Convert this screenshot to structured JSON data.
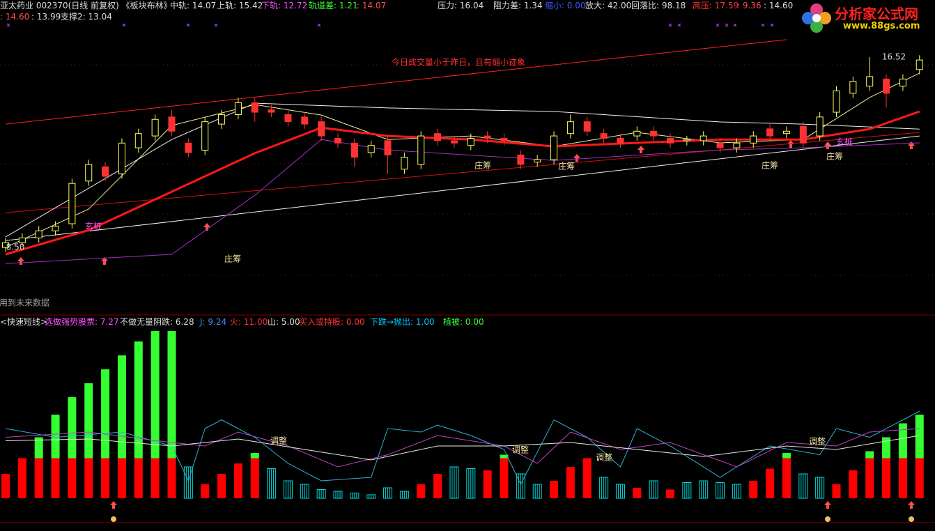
{
  "header": {
    "rows": [
      [
        {
          "text": "亚太药业 002370(日线 前复权) 《板块布林》",
          "color": "#dcdcdc"
        },
        {
          "text": "中轨: 14.07",
          "color": "#dcdcdc"
        },
        {
          "text": "上轨: 15.42",
          "color": "#dcdcdc"
        },
        {
          "text": "下轨: 12.72",
          "color": "#ff55ff"
        },
        {
          "text": "轨道差: 1.21",
          "color": "#33ff33"
        },
        {
          "text": ": 14.07",
          "color": "#ff5050"
        },
        {
          "text": "压力: 16.04",
          "color": "#dcdcdc"
        },
        {
          "text": "阻力差: 1.34",
          "color": "#dcdcdc"
        },
        {
          "text": "缩小: 0.00",
          "color": "#3c5aff"
        },
        {
          "text": "放大: 42.00",
          "color": "#dcdcdc"
        },
        {
          "text": "回落比: 98.18",
          "color": "#dcdcdc"
        },
        {
          "text": "高压: 17.59",
          "color": "#ff3232"
        },
        {
          "text": ": 9.36",
          "color": "#ff5050"
        },
        {
          "text": ": 14.60",
          "color": "#dcdcdc"
        }
      ],
      [
        {
          "text": ": 14.60",
          "color": "#ff5050"
        },
        {
          "text": ": 13.99",
          "color": "#dcdcdc"
        },
        {
          "text": "支撑2: 13.04",
          "color": "#dcdcdc"
        }
      ]
    ]
  },
  "indicator_header": [
    {
      "text": "<快速短线>",
      "color": "#dcdcdc"
    },
    {
      "text": "选做强势股票: 7.27",
      "color": "#ff55ff"
    },
    {
      "text": "不做无量阴跌: 6.28",
      "color": "#dcdcdc"
    },
    {
      "text": "J: 9.24",
      "color": "#3c8cff"
    },
    {
      "text": "火: 11.00",
      "color": "#ff3232"
    },
    {
      "text": "山: 5.00",
      "color": "#dcdcdc"
    },
    {
      "text": "买入或持股: 0.00",
      "color": "#ff3232"
    },
    {
      "text": "下跌→抛出: 1.00",
      "color": "#00c8ff"
    },
    {
      "text": "植被: 0.00",
      "color": "#33ff33"
    }
  ],
  "logo": {
    "title": "分析家公式网",
    "url": "www.88gs.com"
  },
  "chart_data": [
    {
      "type": "candlestick",
      "ylim": [
        5.86,
        18.93
      ],
      "up_color": "#ffff54",
      "down_color": "#ff3232",
      "open": [
        8.5,
        8.7,
        8.9,
        9.2,
        9.5,
        11.3,
        11.9,
        11.6,
        12.7,
        13.2,
        14.0,
        12.9,
        12.6,
        13.7,
        14.1,
        14.6,
        14.3,
        14.1,
        14.0,
        13.8,
        13.1,
        12.9,
        12.5,
        13.0,
        11.8,
        12.0,
        13.3,
        13.0,
        12.8,
        13.2,
        13.1,
        12.4,
        12.1,
        12.2,
        13.3,
        13.8,
        13.3,
        13.1,
        13.2,
        13.4,
        13.1,
        13.0,
        13.0,
        12.9,
        12.7,
        12.9,
        13.5,
        13.3,
        13.6,
        13.2,
        14.2,
        15.0,
        15.3,
        15.6,
        15.3,
        16.0
      ],
      "close": [
        8.7,
        8.9,
        9.2,
        9.4,
        11.2,
        12.0,
        11.5,
        12.9,
        13.3,
        13.9,
        13.4,
        12.5,
        13.8,
        14.1,
        14.6,
        14.2,
        14.2,
        13.8,
        13.7,
        13.2,
        12.9,
        12.3,
        12.8,
        12.4,
        12.3,
        13.2,
        13.0,
        12.9,
        13.1,
        13.1,
        13.0,
        12.0,
        12.2,
        13.2,
        13.8,
        13.4,
        13.1,
        12.9,
        13.4,
        13.2,
        12.9,
        13.05,
        13.2,
        12.7,
        12.9,
        13.2,
        13.2,
        13.4,
        12.9,
        14.0,
        15.1,
        15.5,
        15.7,
        15.0,
        15.6,
        16.4
      ],
      "high": [
        8.9,
        9.1,
        9.4,
        9.6,
        11.4,
        12.2,
        12.1,
        13.1,
        13.5,
        14.1,
        14.3,
        13.1,
        14.0,
        14.3,
        14.8,
        14.8,
        14.5,
        14.3,
        14.2,
        14.0,
        13.3,
        13.1,
        13.0,
        13.2,
        12.5,
        13.4,
        13.5,
        13.2,
        13.3,
        13.4,
        13.3,
        12.6,
        12.4,
        13.4,
        14.1,
        14.0,
        13.5,
        13.3,
        13.6,
        13.6,
        13.3,
        13.2,
        13.4,
        13.1,
        13.1,
        13.4,
        13.7,
        13.6,
        13.8,
        14.2,
        15.3,
        15.7,
        16.52,
        15.8,
        15.8,
        16.6
      ],
      "low": [
        8.3,
        8.5,
        8.7,
        9.0,
        9.3,
        11.1,
        11.3,
        11.4,
        12.5,
        13.0,
        13.2,
        12.3,
        12.4,
        13.5,
        13.9,
        13.8,
        14.0,
        13.6,
        13.5,
        13.0,
        12.7,
        11.9,
        12.3,
        11.6,
        11.6,
        11.8,
        12.8,
        12.7,
        12.6,
        12.9,
        12.8,
        11.8,
        11.9,
        12.0,
        13.1,
        13.2,
        12.9,
        12.7,
        13.0,
        13.0,
        12.7,
        12.8,
        12.8,
        12.5,
        12.5,
        12.7,
        13.0,
        13.1,
        12.7,
        13.0,
        14.0,
        14.8,
        15.1,
        14.4,
        15.1,
        15.8
      ],
      "lines": [
        {
          "color": "#ff2020",
          "width": 1,
          "x": [
            0,
            47
          ],
          "values": [
            13.7,
            17.26
          ]
        },
        {
          "color": "#d01010",
          "width": 1,
          "x": [
            0,
            55
          ],
          "values": [
            9.97,
            13.35
          ]
        },
        {
          "color": "#f0f0f0",
          "width": 1,
          "x": [
            0,
            55
          ],
          "values": [
            8.79,
            13.2
          ]
        },
        {
          "color": "#a030c0",
          "width": 1,
          "x": [
            0,
            10,
            15,
            19,
            23,
            33,
            43,
            48,
            55
          ],
          "values": [
            7.82,
            8.21,
            10.7,
            13.05,
            12.61,
            12.17,
            12.61,
            12.7,
            12.91
          ]
        },
        {
          "color": "#f0f0f0",
          "width": 1,
          "x": [
            0,
            10,
            15,
            23,
            33,
            43,
            48,
            55
          ],
          "values": [
            8.94,
            13.05,
            14.58,
            14.38,
            14.23,
            13.79,
            13.7,
            13.49
          ]
        },
        {
          "color": "#f0f0a0",
          "width": 1,
          "x": [
            0,
            5,
            10,
            15,
            19,
            23,
            28,
            33,
            38,
            43,
            48,
            52,
            55
          ],
          "values": [
            8.5,
            10.12,
            13.64,
            14.52,
            14.08,
            13.05,
            13.2,
            12.76,
            13.35,
            12.91,
            13.05,
            14.82,
            15.85
          ]
        },
        {
          "color": "#ff1818",
          "width": 3,
          "x": [
            0,
            5,
            10,
            15,
            19,
            23,
            28,
            33,
            38,
            43,
            48,
            52,
            55
          ],
          "values": [
            8.21,
            9.23,
            10.85,
            12.47,
            13.55,
            13.2,
            13.05,
            12.76,
            12.91,
            13.05,
            13.05,
            13.49,
            14.23
          ]
        }
      ],
      "annotations": [
        "今日成交量小于昨日，且有缩小迹象",
        "庄筹",
        "庄筹",
        "庄筹",
        "庄筹",
        "庄筹",
        "玄桩",
        "玄桩",
        "16.52",
        "8.50",
        "用到未来数据"
      ]
    },
    {
      "type": "bar",
      "ylim": [
        0,
        100
      ],
      "series": [
        {
          "color": "#ff0000",
          "values": [
            14,
            23,
            23,
            23,
            23,
            23,
            23,
            23,
            23,
            23,
            23,
            null,
            8,
            14,
            20,
            23,
            null,
            null,
            null,
            null,
            null,
            null,
            null,
            null,
            null,
            8,
            14,
            null,
            null,
            16,
            23,
            null,
            null,
            10,
            18,
            23,
            null,
            null,
            6,
            null,
            5,
            null,
            null,
            null,
            null,
            10,
            17,
            23,
            null,
            null,
            8,
            16,
            23,
            23,
            23,
            23
          ]
        },
        {
          "color": "#33ff33",
          "values": [
            null,
            null,
            12,
            25,
            35,
            43,
            51,
            59,
            67,
            73,
            73,
            null,
            null,
            null,
            null,
            3,
            null,
            null,
            null,
            null,
            null,
            null,
            null,
            null,
            null,
            null,
            null,
            null,
            null,
            null,
            2,
            null,
            null,
            null,
            null,
            null,
            null,
            null,
            null,
            null,
            null,
            null,
            null,
            null,
            null,
            null,
            null,
            3,
            null,
            null,
            null,
            null,
            4,
            12,
            20,
            25
          ]
        },
        {
          "color": "#00d8d8",
          "values": [
            null,
            null,
            null,
            null,
            null,
            null,
            null,
            null,
            null,
            null,
            null,
            18,
            null,
            null,
            null,
            null,
            17,
            10,
            8,
            5,
            4,
            3,
            2,
            6,
            4,
            null,
            null,
            18,
            17,
            null,
            null,
            14,
            8,
            null,
            null,
            null,
            12,
            8,
            null,
            10,
            null,
            9,
            10,
            9,
            8,
            null,
            null,
            null,
            14,
            12,
            null,
            null,
            null,
            null,
            null,
            null
          ]
        }
      ],
      "lines": [
        {
          "color": "#30b0d0",
          "width": 1,
          "x": [
            0,
            3,
            7,
            10,
            11,
            12,
            13,
            15,
            17,
            19,
            22,
            23,
            25,
            26,
            28,
            30,
            31,
            33,
            35,
            37,
            38,
            40,
            43,
            46,
            49,
            50,
            52,
            55
          ],
          "values": [
            40,
            35,
            38,
            30,
            10,
            40,
            45,
            35,
            20,
            10,
            12,
            40,
            38,
            42,
            36,
            28,
            8,
            45,
            35,
            18,
            40,
            30,
            12,
            30,
            25,
            40,
            35,
            50
          ]
        },
        {
          "color": "#c040c0",
          "width": 1,
          "x": [
            0,
            5,
            10,
            12,
            14,
            17,
            20,
            23,
            26,
            30,
            32,
            34,
            37,
            40,
            44,
            47,
            50,
            52,
            55
          ],
          "values": [
            35,
            38,
            32,
            30,
            38,
            30,
            18,
            25,
            36,
            30,
            20,
            38,
            28,
            32,
            18,
            32,
            30,
            38,
            40
          ]
        },
        {
          "color": "#e8e8e8",
          "width": 1,
          "x": [
            0,
            5,
            10,
            14,
            18,
            22,
            26,
            30,
            34,
            38,
            42,
            47,
            50,
            55
          ],
          "values": [
            33,
            34,
            30,
            34,
            28,
            22,
            30,
            30,
            32,
            28,
            24,
            30,
            28,
            36
          ]
        }
      ],
      "annotations": [
        "调整",
        "调整",
        "调整",
        "调整"
      ]
    }
  ]
}
